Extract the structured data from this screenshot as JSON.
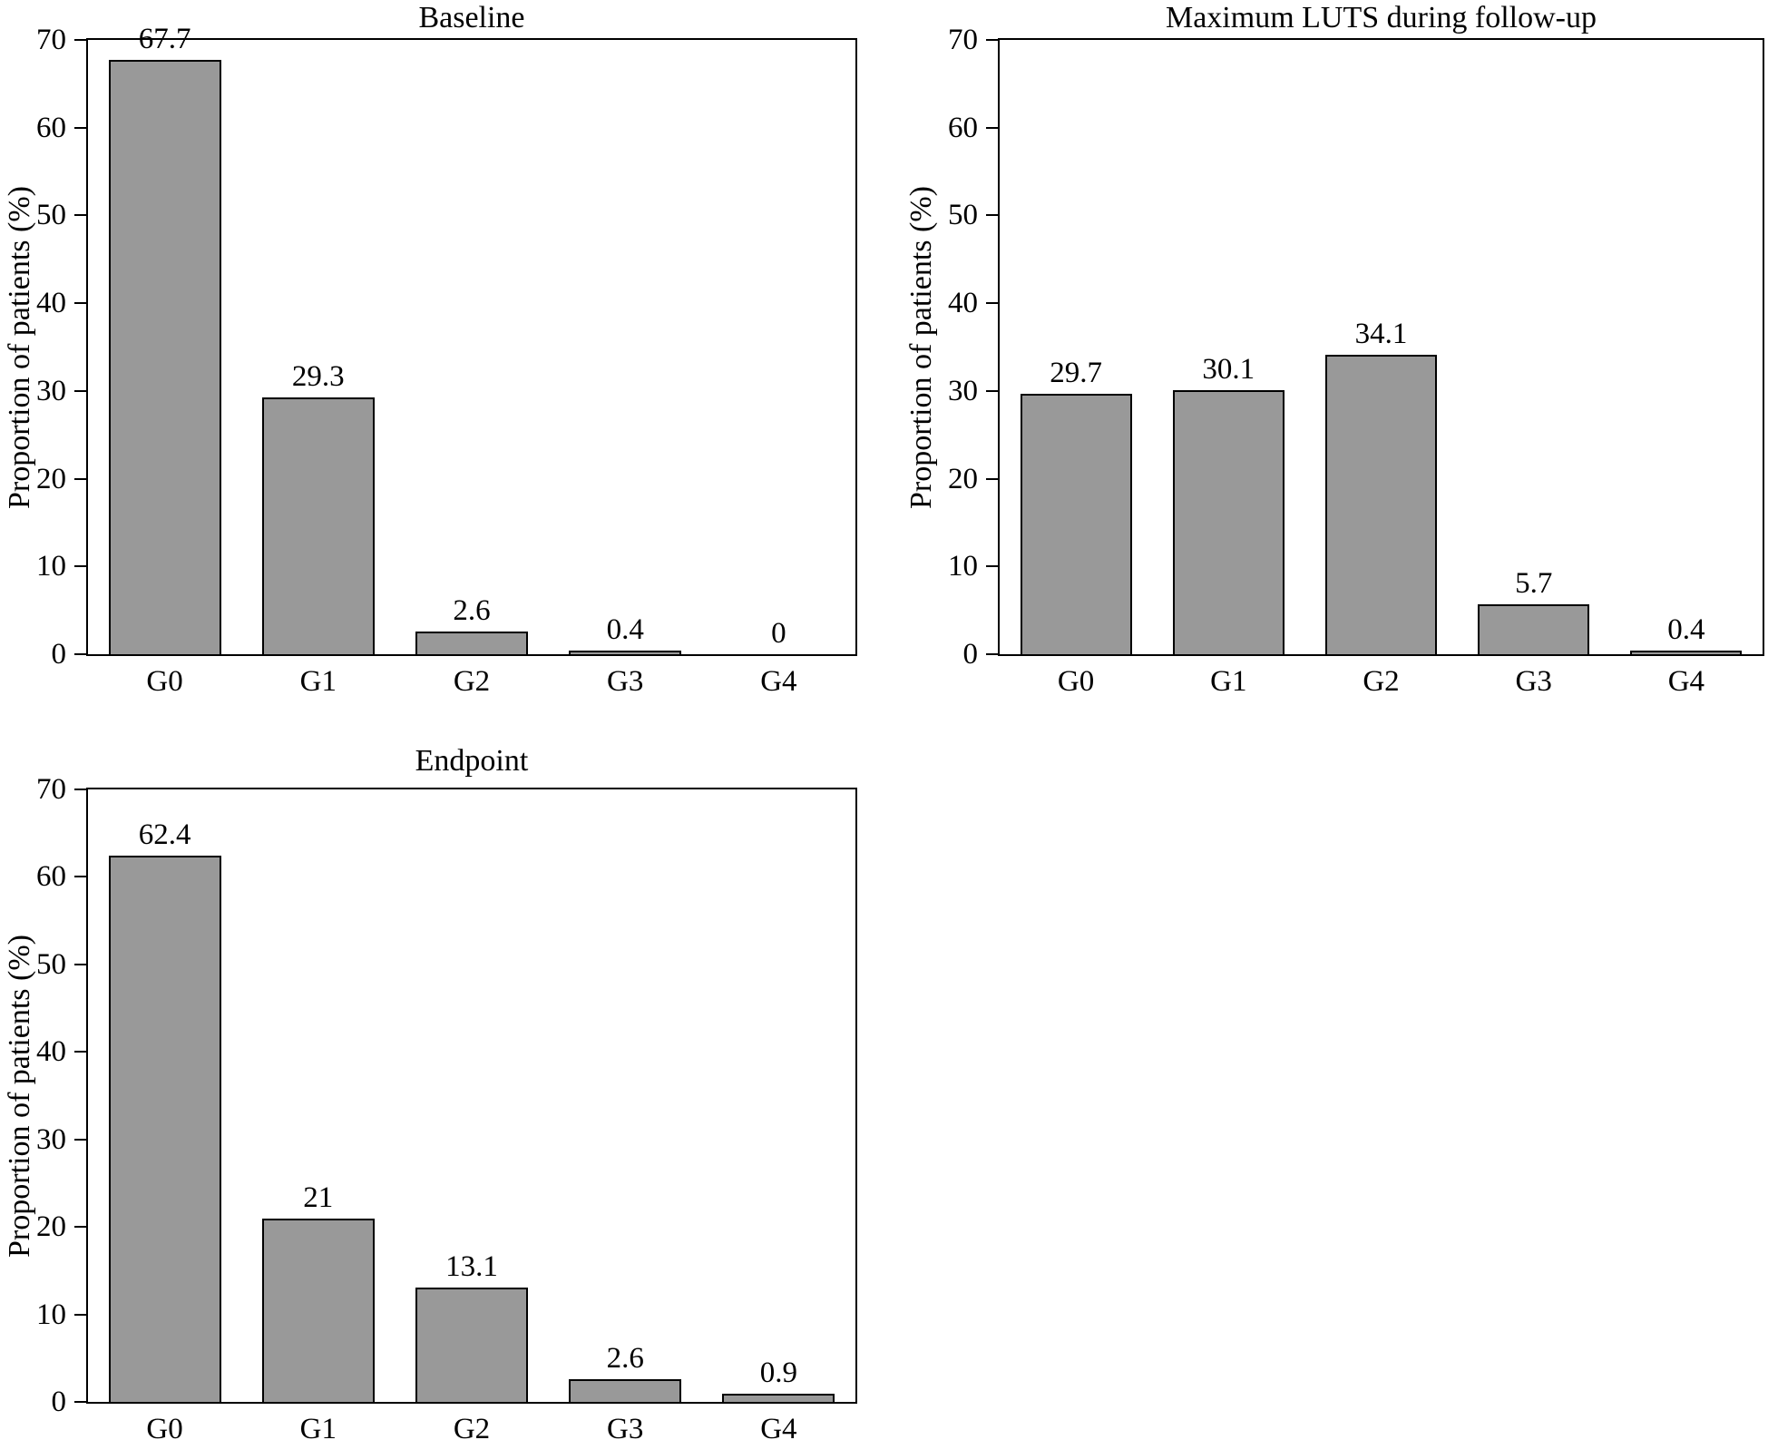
{
  "figure": {
    "background": "#ffffff",
    "text_color": "#000000",
    "bar_fill": "#999999",
    "bar_border": "#000000"
  },
  "chart_data": [
    {
      "type": "bar",
      "title": "Baseline",
      "categories": [
        "G0",
        "G1",
        "G2",
        "G3",
        "G4"
      ],
      "values": [
        67.7,
        29.3,
        2.6,
        0.4,
        0
      ],
      "value_labels": [
        "67.7",
        "29.3",
        "2.6",
        "0.4",
        "0"
      ],
      "xlabel": "",
      "ylabel": "Proportion of patients (%)",
      "ylim": [
        0,
        70
      ],
      "yticks": [
        0,
        10,
        20,
        30,
        40,
        50,
        60,
        70
      ],
      "grid": false,
      "legend": false,
      "frame": "full-box"
    },
    {
      "type": "bar",
      "title": "Maximum LUTS during follow-up",
      "categories": [
        "G0",
        "G1",
        "G2",
        "G3",
        "G4"
      ],
      "values": [
        29.7,
        30.1,
        34.1,
        5.7,
        0.4
      ],
      "value_labels": [
        "29.7",
        "30.1",
        "34.1",
        "5.7",
        "0.4"
      ],
      "xlabel": "",
      "ylabel": "Proportion of patients (%)",
      "ylim": [
        0,
        70
      ],
      "yticks": [
        0,
        10,
        20,
        30,
        40,
        50,
        60,
        70
      ],
      "grid": false,
      "legend": false,
      "frame": "full-box"
    },
    {
      "type": "bar",
      "title": "Endpoint",
      "categories": [
        "G0",
        "G1",
        "G2",
        "G3",
        "G4"
      ],
      "values": [
        62.4,
        21,
        13.1,
        2.6,
        0.9
      ],
      "value_labels": [
        "62.4",
        "21",
        "13.1",
        "2.6",
        "0.9"
      ],
      "xlabel": "",
      "ylabel": "Proportion of patients (%)",
      "ylim": [
        0,
        70
      ],
      "yticks": [
        0,
        10,
        20,
        30,
        40,
        50,
        60,
        70
      ],
      "grid": false,
      "legend": false,
      "frame": "full-box"
    }
  ]
}
